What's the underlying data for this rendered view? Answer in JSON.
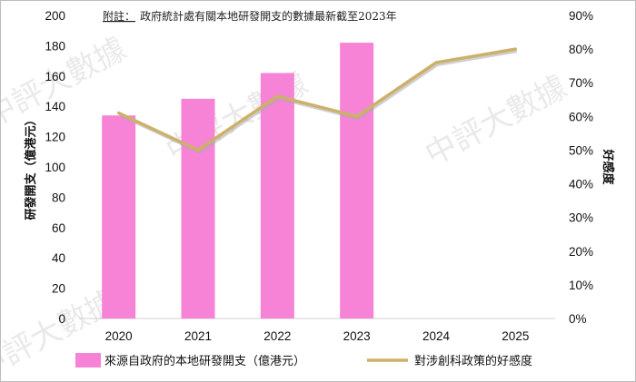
{
  "note": {
    "prefix": "附註：",
    "text": "政府統計處有關本地研發開支的數據最新截至2023年"
  },
  "watermark": {
    "text": "中評大數據"
  },
  "colors": {
    "bar": "#f783d6",
    "line": "#cdb06a",
    "line_shadow": "#a9a9a9",
    "axis": "#d0d0d0"
  },
  "chart_data": {
    "type": "bar",
    "categories": [
      "2020",
      "2021",
      "2022",
      "2023",
      "2024",
      "2025"
    ],
    "series": [
      {
        "name": "來源自政府的本地研發開支（億港元）",
        "type": "bar",
        "axis": "left",
        "values": [
          134,
          145,
          162,
          182,
          null,
          null
        ]
      },
      {
        "name": "對涉創科政策的好感度",
        "type": "line",
        "axis": "right",
        "unit": "%",
        "values": [
          61,
          50,
          66,
          60,
          76,
          80
        ]
      }
    ],
    "y_left": {
      "label": "研發開支（億港元）",
      "ylim": [
        0,
        200
      ],
      "ticks": [
        0,
        20,
        40,
        60,
        80,
        100,
        120,
        140,
        160,
        180,
        200
      ]
    },
    "y_right": {
      "label": "好感度",
      "ylim": [
        0,
        90
      ],
      "ticks": [
        "0%",
        "10%",
        "20%",
        "30%",
        "40%",
        "50%",
        "60%",
        "70%",
        "80%",
        "90%"
      ]
    },
    "grid": false,
    "legend_position": "bottom"
  }
}
